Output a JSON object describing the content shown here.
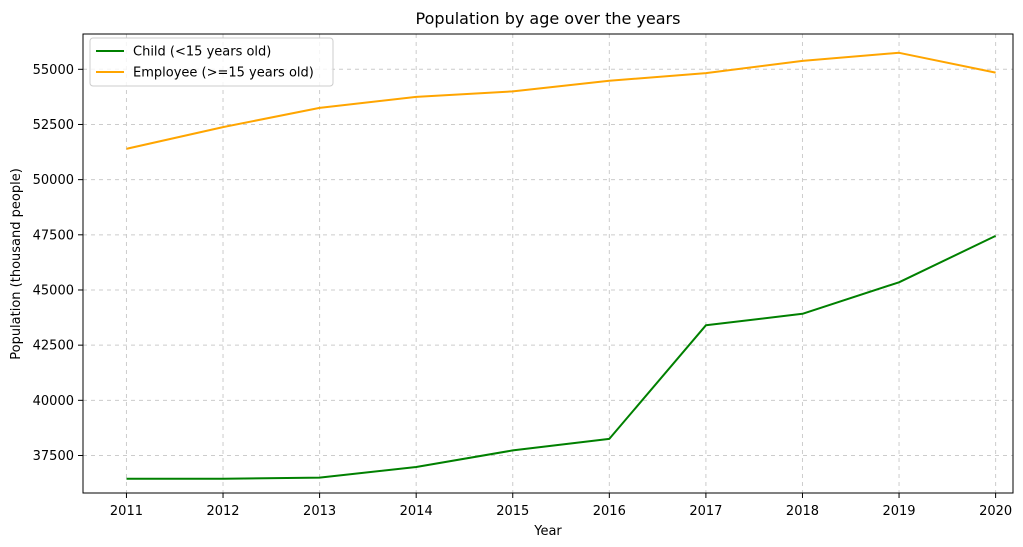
{
  "chart_data": {
    "type": "line",
    "title": "Population by age over the years",
    "xlabel": "Year",
    "ylabel": "Population (thousand people)",
    "x": [
      "2011",
      "2012",
      "2013",
      "2014",
      "2015",
      "2016",
      "2017",
      "2018",
      "2019",
      "2020"
    ],
    "ylim": [
      35800,
      56600
    ],
    "yticks": [
      "37500",
      "40000",
      "42500",
      "45000",
      "47500",
      "50000",
      "52500",
      "55000"
    ],
    "grid": true,
    "legend_position": "top-left",
    "series": [
      {
        "name": "Child (<15 years old)",
        "color": "#008000",
        "values": [
          36450,
          36450,
          36500,
          36980,
          37730,
          38250,
          43400,
          43920,
          45350,
          47450
        ]
      },
      {
        "name": "Employee (>=15 years old)",
        "color": "#ffa500",
        "values": [
          51400,
          52380,
          53250,
          53750,
          54000,
          54480,
          54830,
          55380,
          55750,
          54850
        ]
      }
    ]
  }
}
